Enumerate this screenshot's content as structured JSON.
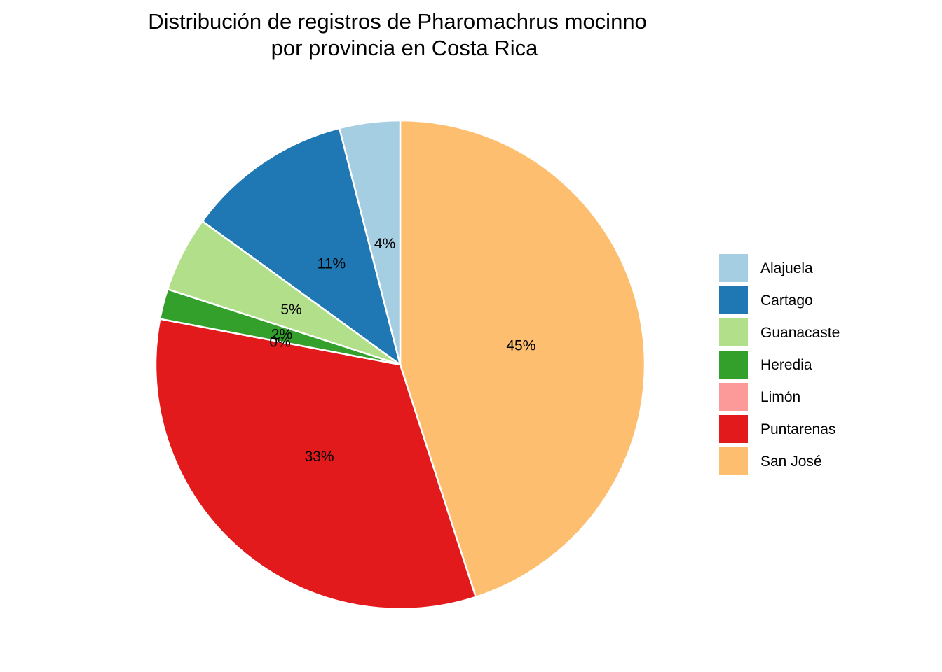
{
  "chart_data": {
    "type": "pie",
    "title_lines": [
      "Distribución de registros de Pharomachrus mocinno",
      "por provincia en Costa Rica"
    ],
    "start": "12 o'clock, clockwise (San José first)",
    "slices": [
      {
        "name": "San José",
        "value": 45,
        "label": "45%",
        "color": "#FDBF6F"
      },
      {
        "name": "Puntarenas",
        "value": 33,
        "label": "33%",
        "color": "#E31A1C"
      },
      {
        "name": "Limón",
        "value": 0,
        "label": "0%",
        "color": "#FB9A99"
      },
      {
        "name": "Heredia",
        "value": 2,
        "label": "2%",
        "color": "#33A02C"
      },
      {
        "name": "Guanacaste",
        "value": 5,
        "label": "5%",
        "color": "#B2DF8A"
      },
      {
        "name": "Cartago",
        "value": 11,
        "label": "11%",
        "color": "#1F78B4"
      },
      {
        "name": "Alajuela",
        "value": 4,
        "label": "4%",
        "color": "#A6CEE3"
      }
    ],
    "legend": {
      "position": "right",
      "entries": [
        {
          "name": "Alajuela",
          "color": "#A6CEE3"
        },
        {
          "name": "Cartago",
          "color": "#1F78B4"
        },
        {
          "name": "Guanacaste",
          "color": "#B2DF8A"
        },
        {
          "name": "Heredia",
          "color": "#33A02C"
        },
        {
          "name": "Limón",
          "color": "#FB9A99"
        },
        {
          "name": "Puntarenas",
          "color": "#E31A1C"
        },
        {
          "name": "San José",
          "color": "#FDBF6F"
        }
      ]
    },
    "slice_border_color": "#FFFFFF"
  }
}
